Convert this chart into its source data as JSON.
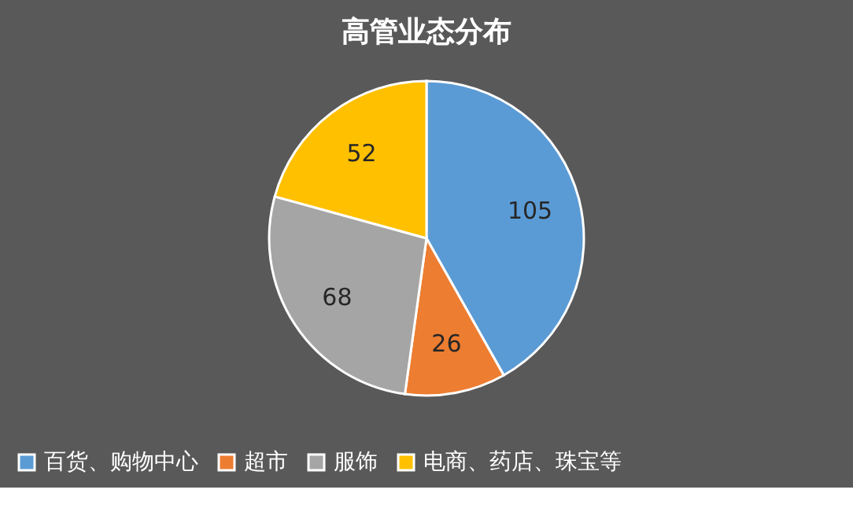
{
  "chart_data": {
    "type": "pie",
    "title": "高管业态分布",
    "categories": [
      "百货、购物中心",
      "超市",
      "服饰",
      "电商、药店、珠宝等"
    ],
    "values": [
      105,
      26,
      68,
      52
    ],
    "colors": [
      "#5b9bd5",
      "#ed7d31",
      "#a5a5a5",
      "#ffc000"
    ],
    "data_labels": true,
    "legend": "bottom"
  }
}
